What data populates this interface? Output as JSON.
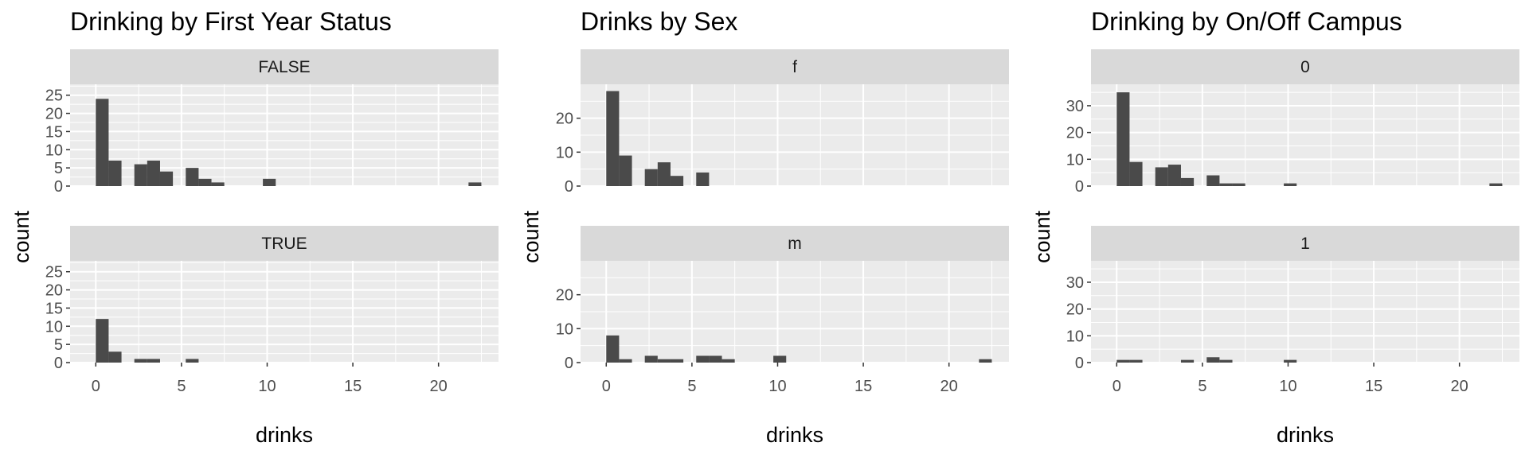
{
  "chart_data": [
    {
      "type": "histogram",
      "title": "Drinking by First Year Status",
      "xlabel": "drinks",
      "ylabel": "count",
      "xlim": [
        -1.5,
        23.5
      ],
      "ylim": [
        0,
        28
      ],
      "xticks": [
        0,
        5,
        10,
        15,
        20
      ],
      "yticks": [
        0,
        5,
        10,
        15,
        20,
        25
      ],
      "bin_width": 0.75,
      "bins": [
        0.0,
        0.75,
        2.25,
        3.0,
        3.75,
        5.25,
        6.0,
        6.75,
        9.75,
        21.75
      ],
      "bin_labels": [
        "0-0.75",
        "0.75-1.5",
        "2.25-3",
        "3-3.75",
        "3.75-4.5",
        "5.25-6",
        "6-6.75",
        "6.75-7.5",
        "9.75-10.5",
        "21.75-22.5"
      ],
      "series": [
        {
          "name": "FALSE",
          "values": [
            24,
            7,
            6,
            7,
            4,
            5,
            2,
            1,
            2,
            1
          ]
        },
        {
          "name": "TRUE",
          "values": [
            12,
            3,
            1,
            1,
            0,
            1,
            0,
            0,
            0,
            0
          ]
        }
      ],
      "grid": true,
      "colors": {
        "bar": "#4a4a4a",
        "panel": "#ebebeb",
        "strip": "#d9d9d9",
        "grid": "#ffffff"
      }
    },
    {
      "type": "histogram",
      "title": "Drinks by Sex",
      "xlabel": "drinks",
      "ylabel": "count",
      "xlim": [
        -1.5,
        23.5
      ],
      "ylim": [
        0,
        30
      ],
      "xticks": [
        0,
        5,
        10,
        15,
        20
      ],
      "yticks": [
        0,
        10,
        20
      ],
      "bin_width": 0.75,
      "bins": [
        0.0,
        0.75,
        2.25,
        3.0,
        3.75,
        5.25,
        6.0,
        6.75,
        9.75,
        21.75
      ],
      "bin_labels": [
        "0-0.75",
        "0.75-1.5",
        "2.25-3",
        "3-3.75",
        "3.75-4.5",
        "5.25-6",
        "6-6.75",
        "6.75-7.5",
        "9.75-10.5",
        "21.75-22.5"
      ],
      "series": [
        {
          "name": "f",
          "values": [
            28,
            9,
            5,
            7,
            3,
            4,
            0,
            0,
            0,
            0
          ]
        },
        {
          "name": "m",
          "values": [
            8,
            1,
            2,
            1,
            1,
            2,
            2,
            1,
            2,
            1
          ]
        }
      ],
      "grid": true,
      "colors": {
        "bar": "#4a4a4a",
        "panel": "#ebebeb",
        "strip": "#d9d9d9",
        "grid": "#ffffff"
      }
    },
    {
      "type": "histogram",
      "title": "Drinking by On/Off Campus",
      "xlabel": "drinks",
      "ylabel": "count",
      "xlim": [
        -1.5,
        23.5
      ],
      "ylim": [
        0,
        38
      ],
      "xticks": [
        0,
        5,
        10,
        15,
        20
      ],
      "yticks": [
        0,
        10,
        20,
        30
      ],
      "bin_width": 0.75,
      "bins": [
        0.0,
        0.75,
        2.25,
        3.0,
        3.75,
        5.25,
        6.0,
        6.75,
        9.75,
        21.75
      ],
      "bin_labels": [
        "0-0.75",
        "0.75-1.5",
        "2.25-3",
        "3-3.75",
        "3.75-4.5",
        "5.25-6",
        "6-6.75",
        "6.75-7.5",
        "9.75-10.5",
        "21.75-22.5"
      ],
      "series": [
        {
          "name": "0",
          "values": [
            35,
            9,
            7,
            8,
            3,
            4,
            1,
            1,
            1,
            1
          ]
        },
        {
          "name": "1",
          "values": [
            1,
            1,
            0,
            0,
            1,
            2,
            1,
            0,
            1,
            0
          ]
        }
      ],
      "grid": true,
      "colors": {
        "bar": "#4a4a4a",
        "panel": "#ebebeb",
        "strip": "#d9d9d9",
        "grid": "#ffffff"
      }
    }
  ]
}
